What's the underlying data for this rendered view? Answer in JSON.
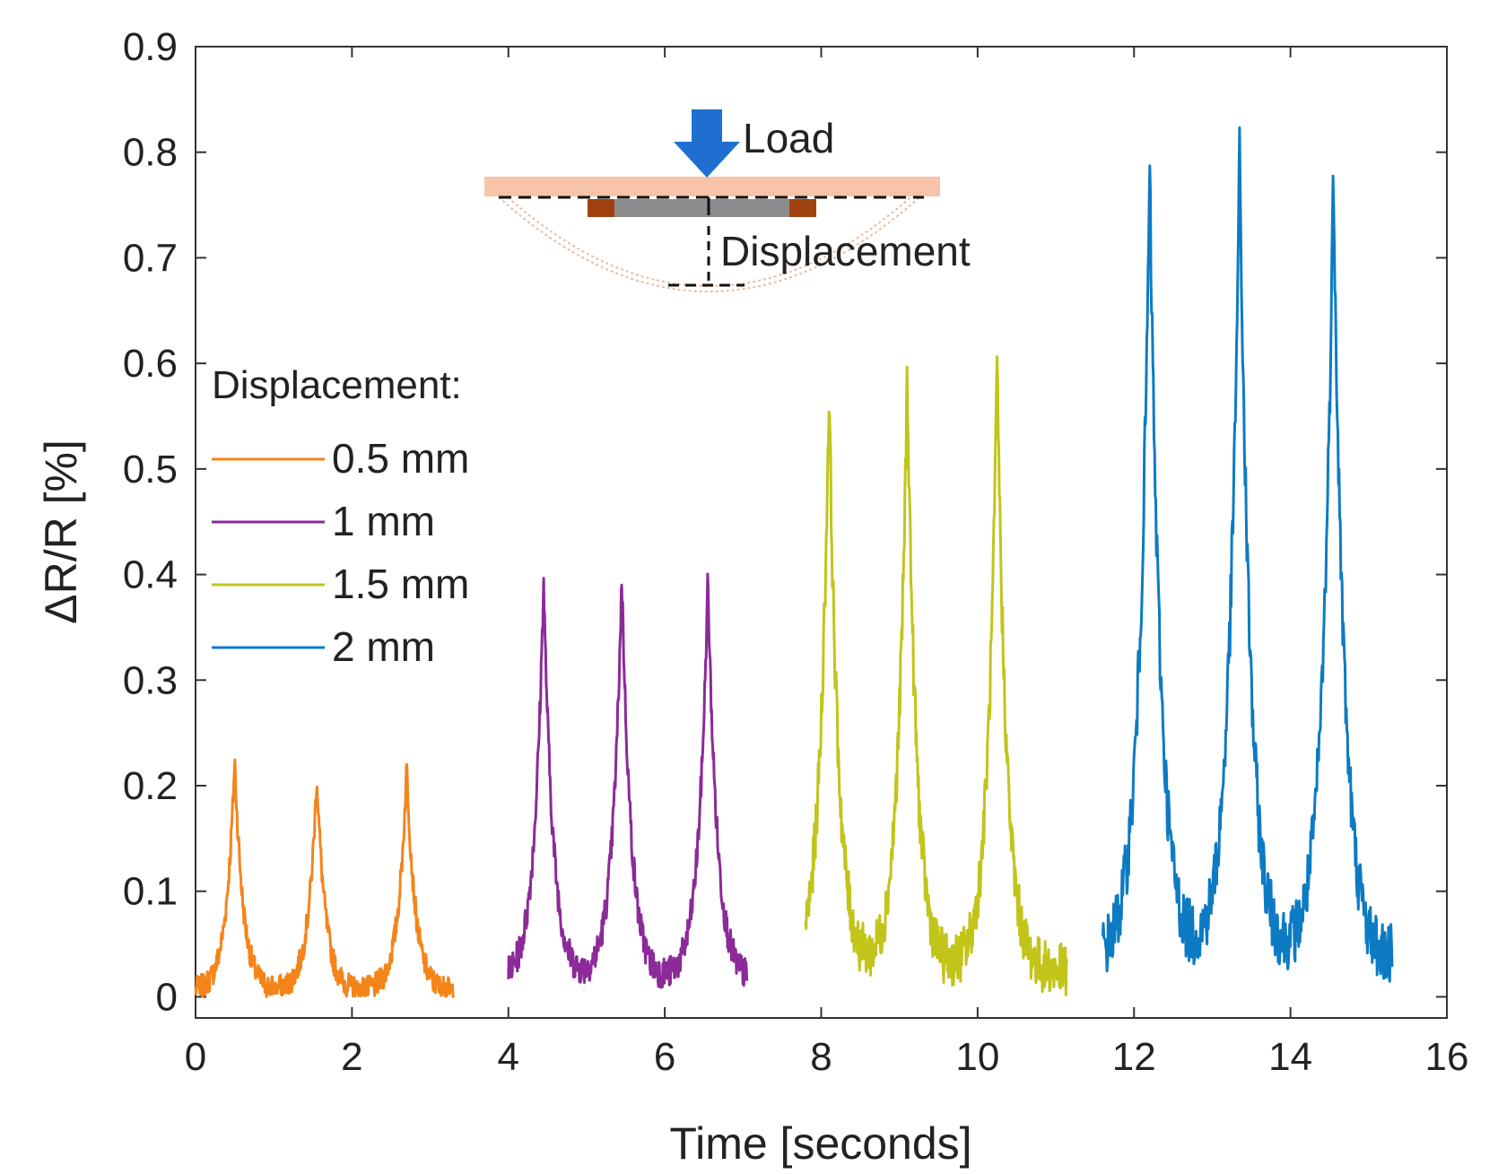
{
  "chart_data": {
    "type": "line",
    "title": "",
    "xlabel": "Time [seconds]",
    "ylabel": "ΔR/R [%]",
    "xlim": [
      0,
      16
    ],
    "ylim": [
      -0.02,
      0.9
    ],
    "x_ticks": [
      "0",
      "2",
      "4",
      "6",
      "8",
      "10",
      "12",
      "14",
      "16"
    ],
    "y_ticks": [
      "0",
      "0.1",
      "0.2",
      "0.3",
      "0.4",
      "0.5",
      "0.6",
      "0.7",
      "0.8",
      "0.9"
    ],
    "grid": false,
    "legend_title": "Displacement:",
    "legend_position": "left",
    "series": [
      {
        "name": "0.5 mm",
        "color": "#F4841A",
        "x_range": [
          0,
          3.3
        ],
        "peak_times": [
          0.5,
          1.55,
          2.7
        ],
        "peak_values": [
          0.225,
          0.21,
          0.22
        ],
        "baseline": 0.005,
        "noise": 0.012,
        "width": 0.11
      },
      {
        "name": "1 mm",
        "color": "#8B2A98",
        "x_range": [
          4.0,
          7.05
        ],
        "peak_times": [
          4.45,
          5.45,
          6.55
        ],
        "peak_values": [
          0.395,
          0.4,
          0.395
        ],
        "baseline": 0.015,
        "noise": 0.015,
        "width": 0.12
      },
      {
        "name": "1.5 mm",
        "color": "#C2C41A",
        "x_range": [
          7.8,
          11.15
        ],
        "peak_times": [
          8.1,
          9.1,
          10.25
        ],
        "peak_values": [
          0.575,
          0.59,
          0.6
        ],
        "baseline": 0.025,
        "noise": 0.025,
        "width": 0.12
      },
      {
        "name": "2 mm",
        "color": "#0C7BC4",
        "x_range": [
          11.6,
          15.3
        ],
        "peak_times": [
          12.2,
          13.35,
          14.55
        ],
        "peak_values": [
          0.78,
          0.8,
          0.785
        ],
        "baseline": 0.035,
        "noise": 0.03,
        "width": 0.14
      }
    ],
    "inset": {
      "load_label": "Load",
      "displacement_label": "Displacement",
      "colors": {
        "arrow": "#1F6FD0",
        "beam": "#F6C4A8",
        "sensor": "#8C8C8C",
        "electrode": "#A0420E",
        "deflection": "#E8BCA8"
      }
    }
  }
}
